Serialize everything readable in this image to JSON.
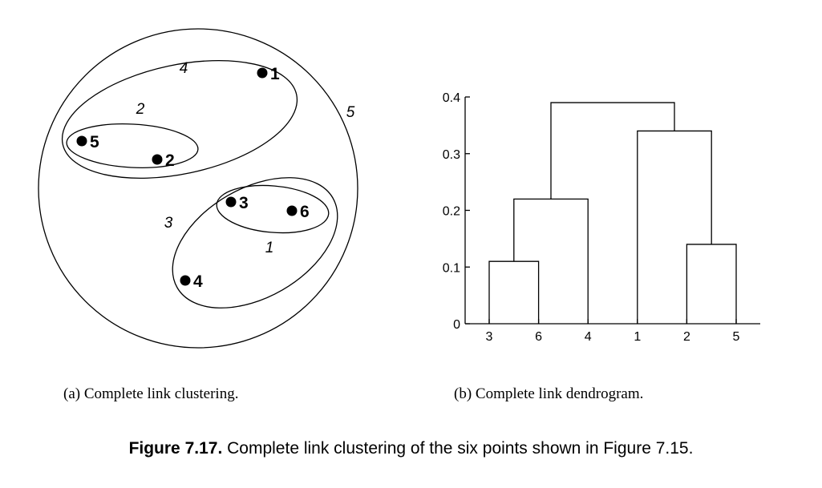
{
  "clustering": {
    "points": [
      {
        "label": "1"
      },
      {
        "label": "2"
      },
      {
        "label": "3"
      },
      {
        "label": "4"
      },
      {
        "label": "5"
      },
      {
        "label": "6"
      }
    ],
    "cluster_labels": [
      "1",
      "2",
      "3",
      "4",
      "5"
    ]
  },
  "chart_data": {
    "type": "dendrogram",
    "leaf_order": [
      "3",
      "6",
      "4",
      "1",
      "2",
      "5"
    ],
    "ylim": [
      0,
      0.4
    ],
    "yticks": [
      "0",
      "0.1",
      "0.2",
      "0.3",
      "0.4"
    ],
    "merges": [
      {
        "left": "3",
        "right": "6",
        "height": 0.11
      },
      {
        "left": "2",
        "right": "5",
        "height": 0.14
      },
      {
        "left": "3,6",
        "right": "4",
        "height": 0.22
      },
      {
        "left": "1",
        "right": "2,5",
        "height": 0.34
      },
      {
        "left": "3,6,4",
        "right": "1,2,5",
        "height": 0.39
      }
    ]
  },
  "captions": {
    "sub_a": "(a) Complete link clustering.",
    "sub_b": "(b) Complete link dendrogram.",
    "figure_number": "Figure 7.17.",
    "figure_text": "Complete link clustering of the six points shown in Figure 7.15."
  }
}
